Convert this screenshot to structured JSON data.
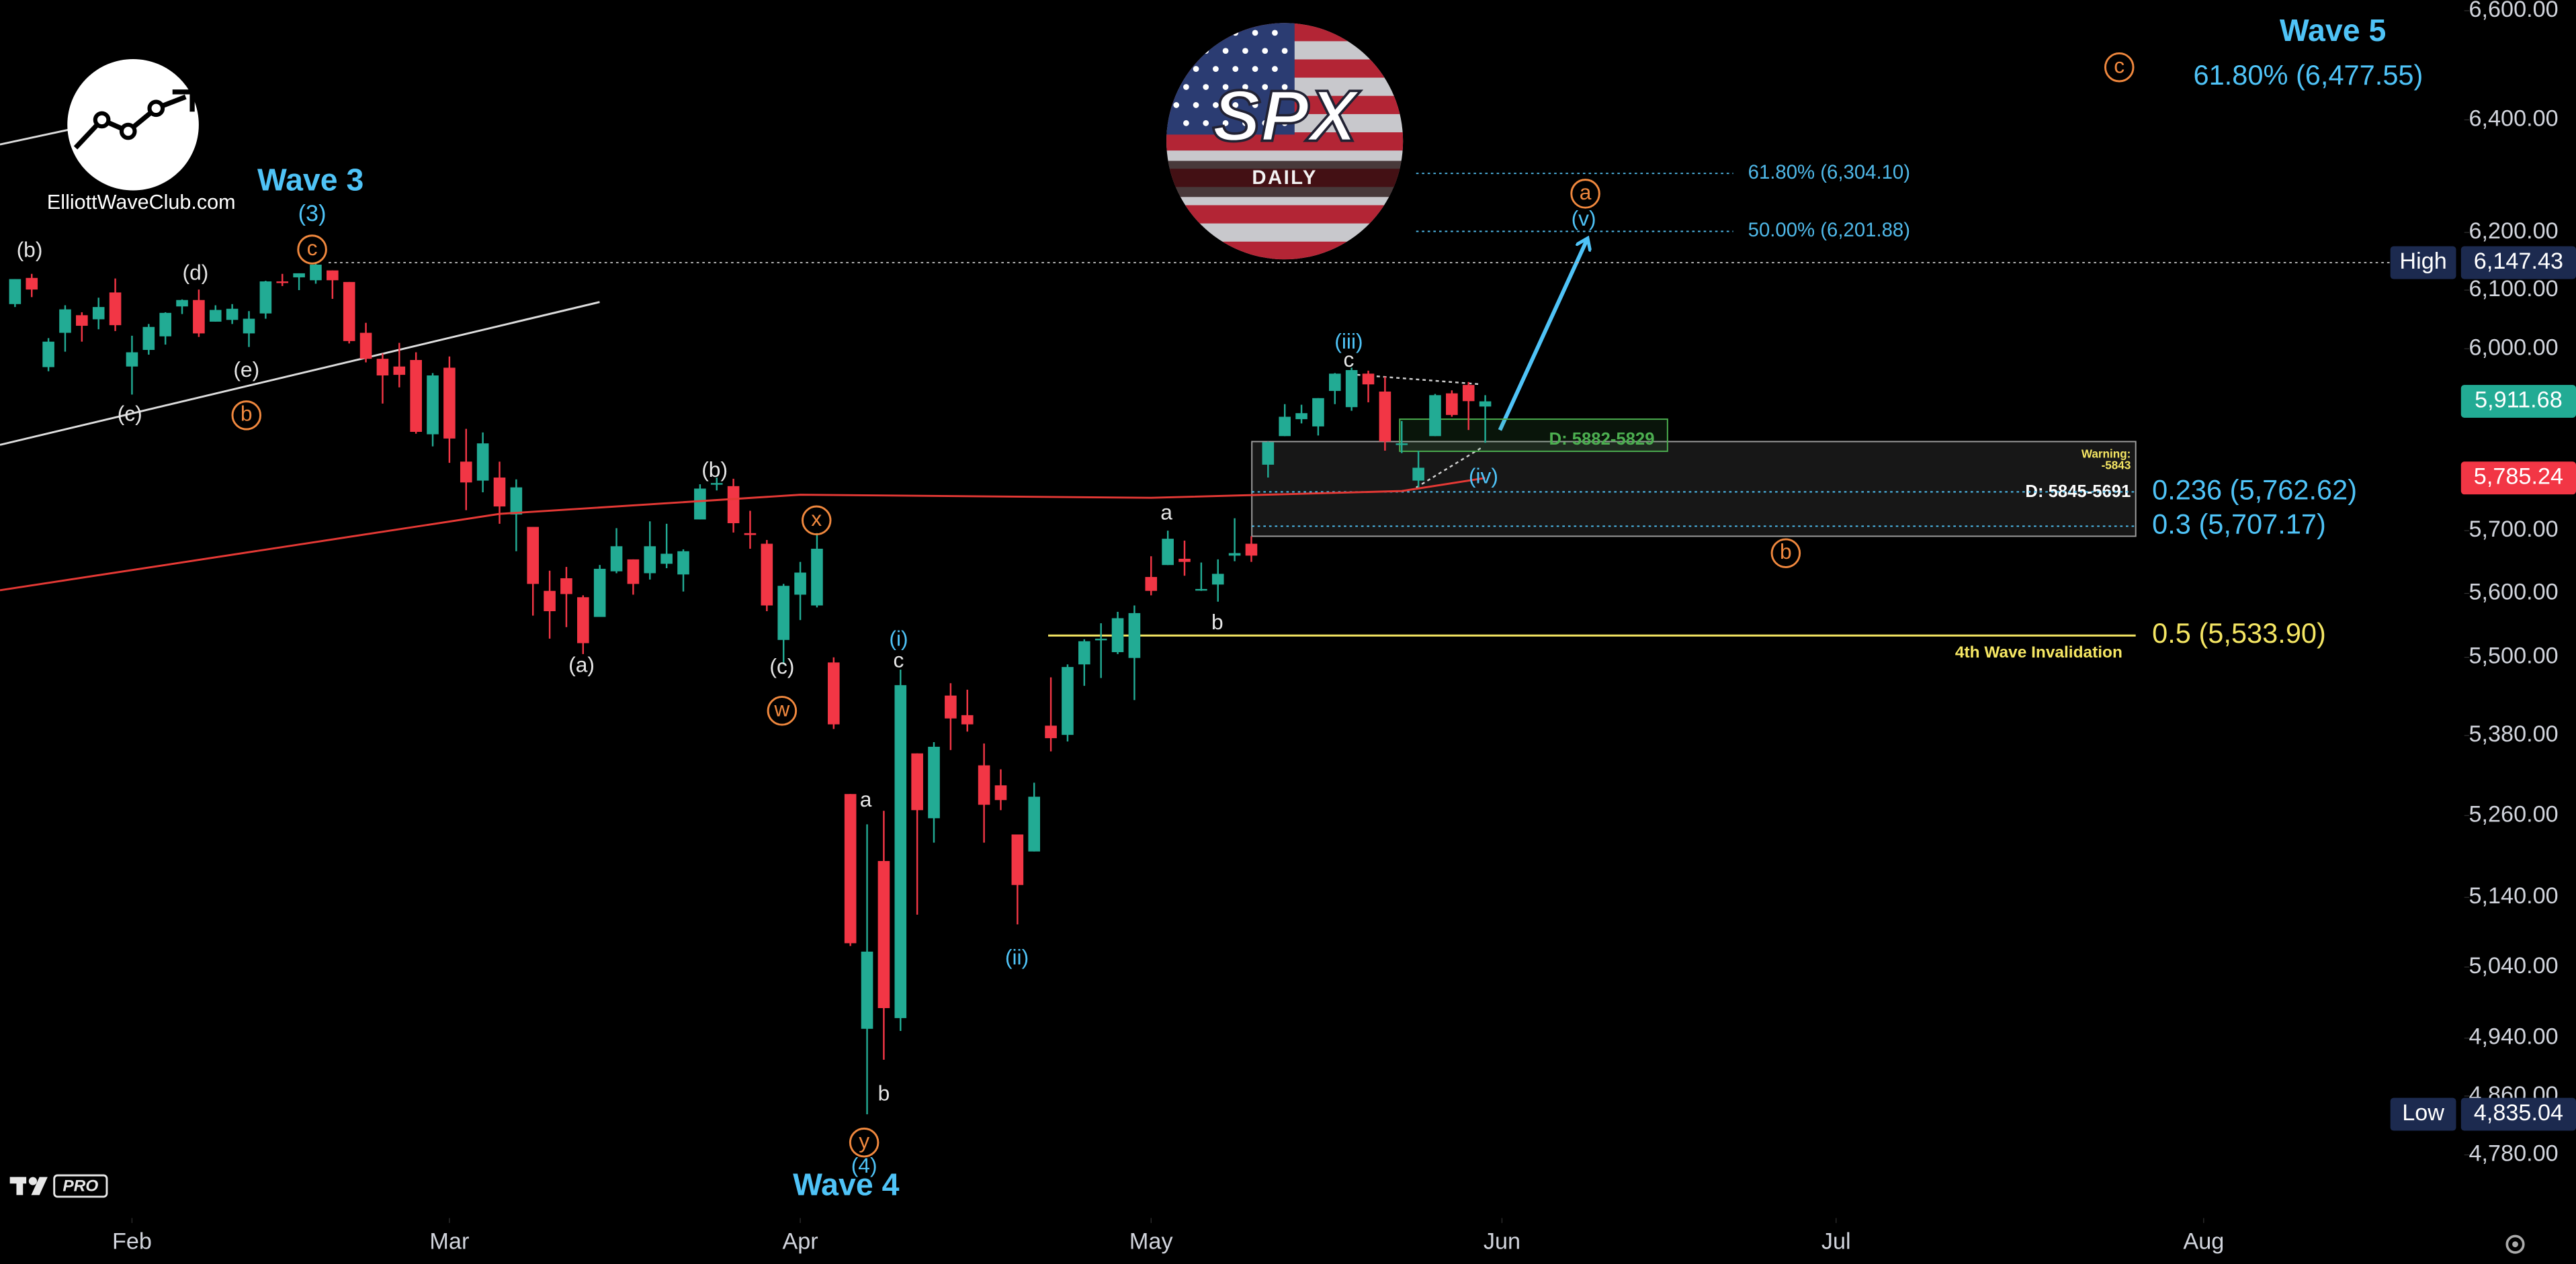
{
  "chart_data": {
    "type": "candlestick",
    "log_scale": true,
    "grid": false,
    "up_color": "#22ab94",
    "down_color": "#f23645",
    "logo_title": "SPX",
    "logo_subtitle": "DAILY",
    "brand": "ElliottWaveClub.com",
    "badge": "PRO",
    "xlim": [
      -7.9,
      139.6
    ],
    "xticks": [
      {
        "value": 0,
        "label": "Feb"
      },
      {
        "value": 19,
        "label": "Mar"
      },
      {
        "value": 40,
        "label": "Apr"
      },
      {
        "value": 61,
        "label": "May"
      },
      {
        "value": 82,
        "label": "Jun"
      },
      {
        "value": 102,
        "label": "Jul"
      },
      {
        "value": 124,
        "label": "Aug"
      }
    ],
    "ylim": [
      4700,
      6620
    ],
    "yticks": [
      {
        "value": 6600,
        "label": "6,600.00"
      },
      {
        "value": 6400,
        "label": "6,400.00"
      },
      {
        "value": 6200,
        "label": "6,200.00"
      },
      {
        "value": 6100,
        "label": "6,100.00"
      },
      {
        "value": 6000,
        "label": "6,000.00"
      },
      {
        "value": 5700,
        "label": "5,700.00"
      },
      {
        "value": 5600,
        "label": "5,600.00"
      },
      {
        "value": 5500,
        "label": "5,500.00"
      },
      {
        "value": 5380,
        "label": "5,380.00"
      },
      {
        "value": 5260,
        "label": "5,260.00"
      },
      {
        "value": 5140,
        "label": "5,140.00"
      },
      {
        "value": 5040,
        "label": "5,040.00"
      },
      {
        "value": 4940,
        "label": "4,940.00"
      },
      {
        "value": 4860,
        "label": "4,860.00"
      },
      {
        "value": 4780,
        "label": "4,780.00"
      }
    ],
    "x": [
      -7,
      -6,
      -5,
      -4,
      -3,
      -2,
      -1,
      0,
      1,
      2,
      3,
      4,
      5,
      6,
      7,
      8,
      9,
      10,
      11,
      12,
      13,
      14,
      15,
      16,
      17,
      18,
      19,
      20,
      21,
      22,
      23,
      24,
      25,
      26,
      27,
      28,
      29,
      30,
      31,
      32,
      33,
      34,
      35,
      36,
      37,
      38,
      39,
      40,
      41,
      42,
      43,
      44,
      45,
      46,
      47,
      48,
      49,
      50,
      51,
      52,
      53,
      54,
      55,
      56,
      57,
      58,
      59,
      60,
      61,
      62,
      63,
      64,
      65,
      66,
      67,
      68,
      69,
      70,
      71,
      72,
      73,
      74,
      75,
      76,
      77,
      78,
      79,
      80,
      81
    ],
    "open": [
      6076,
      6121,
      5969,
      6027,
      6057,
      6050,
      6096,
      5970,
      5998,
      6021,
      6072,
      6083,
      6046,
      6049,
      6026,
      6060,
      6115,
      6122,
      6117,
      6134,
      6114,
      6027,
      5983,
      5970,
      5981,
      5857,
      5968,
      5812,
      5781,
      5786,
      5726,
      5706,
      5604,
      5624,
      5594,
      5563,
      5635,
      5654,
      5632,
      5647,
      5630,
      5718,
      5776,
      5772,
      5696,
      5679,
      5527,
      5598,
      5581,
      5492,
      5292,
      4953,
      5193,
      4968,
      5353,
      5256,
      5441,
      5411,
      5335,
      5305,
      5232,
      5207,
      5395,
      5381,
      5489,
      5529,
      5508,
      5499,
      5626,
      5645,
      5655,
      5606,
      5614,
      5660,
      5679,
      5807,
      5854,
      5882,
      5870,
      5929,
      5902,
      5958,
      5928,
      5841,
      5781,
      5854,
      5925,
      5939,
      5903
    ],
    "high": [
      6119,
      6128,
      6018,
      6074,
      6062,
      6087,
      6120,
      6022,
      6042,
      6062,
      6084,
      6101,
      6074,
      6076,
      6064,
      6116,
      6128,
      6129,
      6147.43,
      6134,
      6114,
      6044,
      5992,
      6010,
      5994,
      5959,
      5987,
      5866,
      5860,
      5812,
      5783,
      5706,
      5636,
      5642,
      5597,
      5645,
      5704,
      5654,
      5715,
      5711,
      5670,
      5775,
      5786,
      5784,
      5732,
      5685,
      5615,
      5650,
      5696,
      5500,
      5292,
      5247,
      5267,
      5481,
      5353,
      5370,
      5460,
      5450,
      5368,
      5329,
      5232,
      5309,
      5469,
      5489,
      5528,
      5553,
      5571,
      5581,
      5659,
      5700,
      5684,
      5649,
      5654,
      5720,
      5691,
      5845,
      5907,
      5906,
      5917,
      5959,
      5968,
      5963,
      5953,
      5879,
      5830,
      5924,
      5930,
      5944,
      5922
    ],
    "low": [
      6071,
      6088,
      5962,
      5995,
      6012,
      6033,
      6030,
      5923,
      5990,
      6007,
      6059,
      6020,
      6046,
      6042,
      6003,
      6051,
      6107,
      6100,
      6111,
      6085,
      6009,
      5977,
      5908,
      5935,
      5858,
      5837,
      5810,
      5733,
      5762,
      5711,
      5667,
      5565,
      5529,
      5547,
      5505,
      5563,
      5632,
      5598,
      5622,
      5640,
      5603,
      5718,
      5765,
      5697,
      5671,
      5572,
      5489,
      5558,
      5578,
      5390,
      5070,
      4835.04,
      4910,
      4950,
      5115,
      5220,
      5358,
      5386,
      5220,
      5268,
      5101,
      5207,
      5356,
      5371,
      5456,
      5468,
      5505,
      5434,
      5597,
      5645,
      5628,
      5604,
      5587,
      5651,
      5650,
      5786,
      5854,
      5875,
      5855,
      5907,
      5896,
      5910,
      5830,
      5826,
      5767,
      5854,
      5886,
      5864,
      5843
    ],
    "close": [
      6119,
      6101,
      6012,
      6067,
      6039,
      6071,
      6040,
      5994,
      6037,
      6061,
      6083,
      6026,
      6066,
      6068,
      6051,
      6115,
      6114,
      6129,
      6144,
      6117,
      6013,
      5983,
      5955,
      5956,
      5861,
      5955,
      5850,
      5778,
      5842,
      5739,
      5770,
      5615,
      5572,
      5599,
      5522,
      5639,
      5675,
      5615,
      5675,
      5663,
      5667,
      5768,
      5777,
      5712,
      5693,
      5581,
      5612,
      5633,
      5671,
      5397,
      5074,
      5062,
      4982,
      5457,
      5268,
      5363,
      5406,
      5397,
      5276,
      5283,
      5158,
      5288,
      5376,
      5485,
      5525,
      5529,
      5561,
      5569,
      5604,
      5687,
      5650,
      5607,
      5631,
      5664,
      5660,
      5844,
      5886,
      5892,
      5917,
      5958,
      5964,
      5940,
      5845,
      5842,
      5802,
      5922,
      5889,
      5912,
      5911.68
    ],
    "moving_average": {
      "color": "#e53935",
      "x": [
        -7.9,
        22,
        40,
        61,
        76,
        81
      ],
      "values": [
        5605,
        5727,
        5758,
        5753,
        5764,
        5785.24
      ]
    },
    "levels": [
      {
        "label": "61.80% (6,304.10)",
        "value": 6304.1,
        "color": "#4fb8e8"
      },
      {
        "label": "50.00% (6,201.88)",
        "value": 6201.88,
        "color": "#4fb8e8"
      },
      {
        "label": "0.236 (5,762.62)",
        "value": 5762.62,
        "color": "#4fc3f7"
      },
      {
        "label": "0.3 (5,707.17)",
        "value": 5707.17,
        "color": "#4fc3f7"
      },
      {
        "label": "0.5 (5,533.90)",
        "value": 5533.9,
        "color": "#f5e663"
      },
      {
        "label": "61.80% (6,477.55)",
        "value": 6477.55,
        "color": "#4fc3f7"
      }
    ],
    "zones": [
      {
        "label": "D: 5845-5691",
        "from": 5845,
        "to": 5691,
        "color": "#9e9e9e"
      },
      {
        "label": "D: 5882-5829",
        "from": 5882,
        "to": 5829,
        "color": "#4caf50"
      }
    ],
    "price_tags": [
      {
        "name": "High",
        "value": 6147.43,
        "label": "6,147.43",
        "color": "#1c2a4f"
      },
      {
        "name": "Low",
        "value": 4835.04,
        "label": "4,835.04",
        "color": "#1c2a4f"
      },
      {
        "value": 5911.68,
        "label": "5,911.68",
        "color": "#22ab94"
      },
      {
        "value": 5785.24,
        "label": "5,785.24",
        "color": "#f23645"
      }
    ],
    "annotations": [
      "Wave 3",
      "(3)",
      "c",
      "(b)",
      "(d)",
      "(e)",
      "b",
      "(c)",
      "(b)",
      "x",
      "(a)",
      "(c)",
      "w",
      "(i)",
      "c",
      "a",
      "b",
      "y",
      "(4)",
      "Wave 4",
      "(ii)",
      "a",
      "b",
      "(iii)",
      "c",
      "(iv)",
      "a",
      "(v)",
      "b",
      "c",
      "Wave 5",
      "4th Wave Invalidation",
      "Warning:",
      "-5843"
    ]
  }
}
